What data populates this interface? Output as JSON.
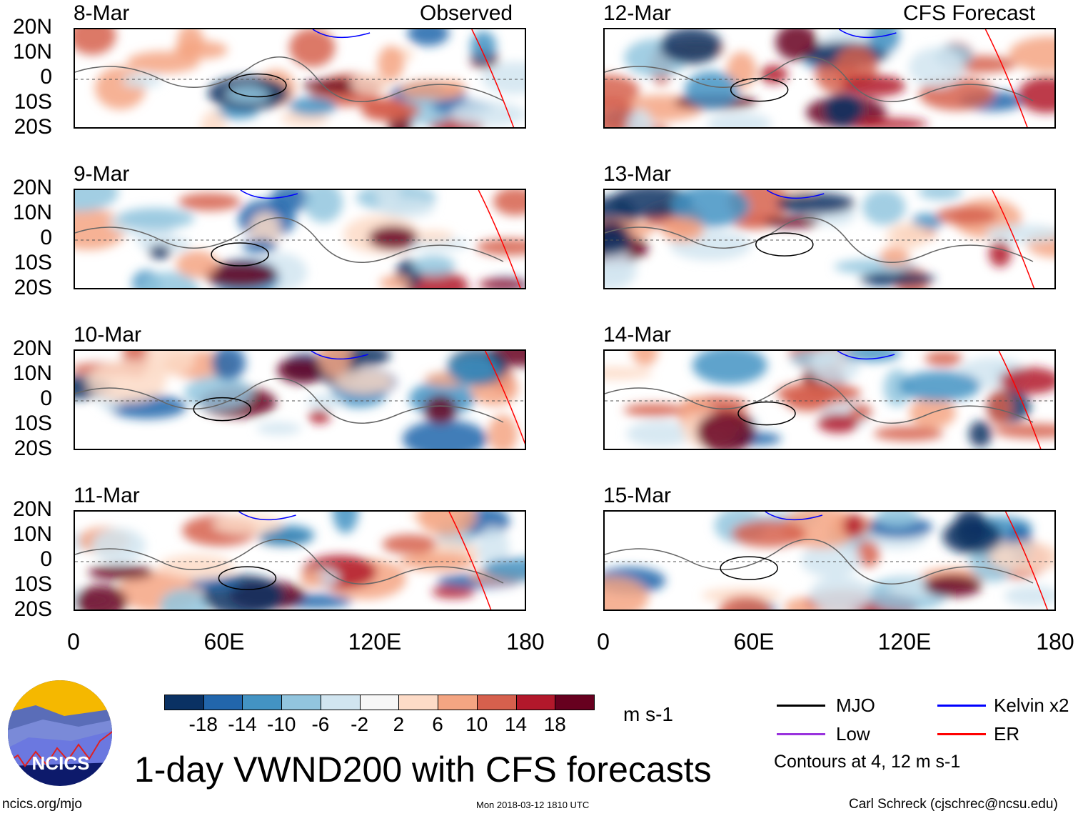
{
  "title": "1-day VWND200 with CFS forecasts",
  "observed_label": "Observed",
  "forecast_label": "CFS Forecast",
  "footer": {
    "left": "ncics.org/mjo",
    "center": "Mon 2018-03-12 1810 UTC",
    "right": "Carl Schreck (cjschrec@ncsu.edu)"
  },
  "logo_text": "NCICS",
  "chart_data": {
    "type": "heatmap",
    "title": "1-day VWND200 with CFS forecasts",
    "panels": [
      {
        "date": "8-Mar",
        "kind": "Observed"
      },
      {
        "date": "9-Mar",
        "kind": "Observed"
      },
      {
        "date": "10-Mar",
        "kind": "Observed"
      },
      {
        "date": "11-Mar",
        "kind": "Observed"
      },
      {
        "date": "12-Mar",
        "kind": "CFS Forecast"
      },
      {
        "date": "13-Mar",
        "kind": "CFS Forecast"
      },
      {
        "date": "14-Mar",
        "kind": "CFS Forecast"
      },
      {
        "date": "15-Mar",
        "kind": "CFS Forecast"
      }
    ],
    "ylabels": [
      "20N",
      "10N",
      "0",
      "10S",
      "20S"
    ],
    "xlabels": [
      "0",
      "60E",
      "120E",
      "180"
    ],
    "xlim": [
      0,
      180
    ],
    "ylim": [
      -20,
      20
    ],
    "colorbar": {
      "units": "m s-1",
      "ticks": [
        "-18",
        "-14",
        "-10",
        "-6",
        "-2",
        "2",
        "6",
        "10",
        "14",
        "18"
      ],
      "colors": [
        "#0a3163",
        "#2266ac",
        "#4393c3",
        "#92c5de",
        "#d1e5f0",
        "#f7f7f7",
        "#fddbc7",
        "#f4a582",
        "#d6604d",
        "#b2182b",
        "#67001f"
      ]
    },
    "legend": [
      {
        "label": "MJO",
        "color": "#000000"
      },
      {
        "label": "Kelvin x2",
        "color": "#0000ff"
      },
      {
        "label": "Low",
        "color": "#9933dd"
      },
      {
        "label": "ER",
        "color": "#ff0000"
      }
    ],
    "contour_note": "Contours at 4, 12 m s-1"
  }
}
